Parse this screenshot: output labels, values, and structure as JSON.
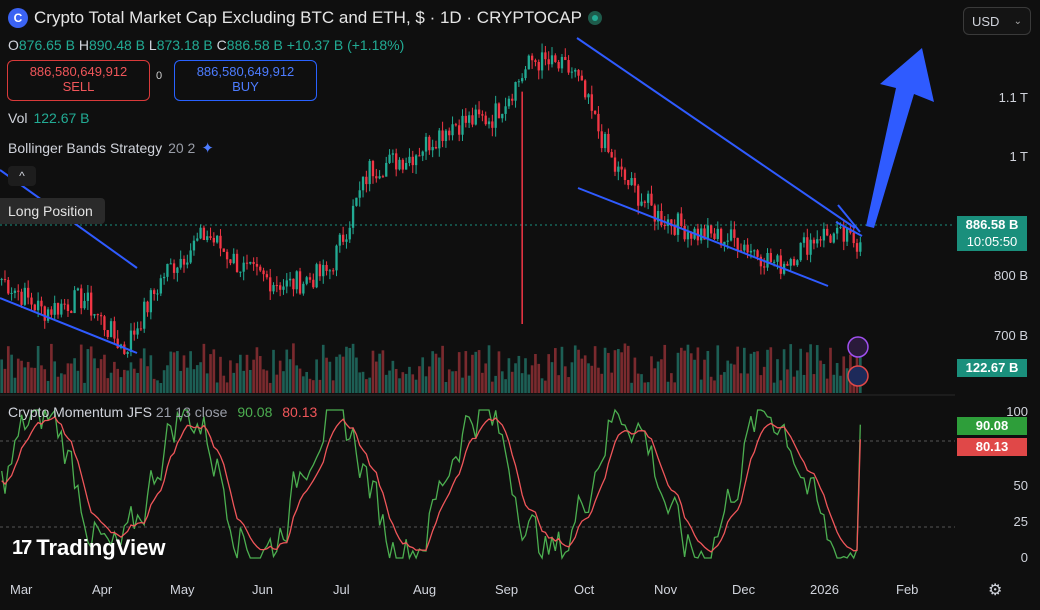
{
  "header": {
    "title": "Crypto Total Market Cap Excluding BTC and ETH, $ · 1D · CRYPTOCAP",
    "logo_glyph": "C"
  },
  "ohlc": {
    "o_label": "O",
    "o": "876.65 B",
    "h_label": "H",
    "h": "890.48 B",
    "l_label": "L",
    "l": "873.18 B",
    "c_label": "C",
    "c": "886.58 B",
    "change": "+10.37 B (+1.18%)"
  },
  "trade": {
    "sell_price": "886,580,649,912",
    "sell_label": "SELL",
    "spread": "0",
    "buy_price": "886,580,649,912",
    "buy_label": "BUY"
  },
  "volume": {
    "label": "Vol",
    "value": "122.67 B"
  },
  "indicator": {
    "name": "Bollinger Bands Strategy",
    "params": "20 2"
  },
  "position": {
    "label": "Long Position",
    "collapse_glyph": "^"
  },
  "currency": {
    "value": "USD"
  },
  "momentum": {
    "name": "Crypto Momentum JFS",
    "params": "21 13 close",
    "v1": "90.08",
    "v2": "80.13"
  },
  "price_tags": {
    "last": "886.58 B",
    "countdown": "10:05:50",
    "volume": "122.67 B"
  },
  "osc_tags": {
    "green": "90.08",
    "red": "80.13"
  },
  "brand": "TradingView",
  "colors": {
    "up": "#22ab94",
    "down": "#f23645",
    "trendline": "#2f5bff",
    "osc_green": "#4caf50",
    "osc_red": "#f0565a"
  },
  "chart_data": {
    "type": "candlestick",
    "title": "Crypto Total Market Cap Excluding BTC and ETH, $ · 1D · CRYPTOCAP",
    "x_ticks": [
      "Mar",
      "Apr",
      "May",
      "Jun",
      "Jul",
      "Aug",
      "Sep",
      "Oct",
      "Nov",
      "Dec",
      "2026",
      "Feb"
    ],
    "y_ticks": [
      {
        "value": 700,
        "label": "700 B"
      },
      {
        "value": 800,
        "label": "800 B"
      },
      {
        "value": 1000,
        "label": "1 T"
      },
      {
        "value": 1100,
        "label": "1.1 T"
      }
    ],
    "ylim": [
      650,
      1200
    ],
    "osc_ticks": [
      0,
      25,
      50,
      75,
      100
    ],
    "approx_close_path": [
      {
        "t": "Mar",
        "v": 830
      },
      {
        "t": "mid-Mar",
        "v": 780
      },
      {
        "t": "Apr",
        "v": 800
      },
      {
        "t": "mid-Apr",
        "v": 720
      },
      {
        "t": "May",
        "v": 840
      },
      {
        "t": "mid-May",
        "v": 900
      },
      {
        "t": "Jun",
        "v": 840
      },
      {
        "t": "mid-Jun",
        "v": 820
      },
      {
        "t": "Jul",
        "v": 840
      },
      {
        "t": "mid-Jul",
        "v": 1000
      },
      {
        "t": "Aug",
        "v": 1020
      },
      {
        "t": "mid-Aug",
        "v": 1070
      },
      {
        "t": "Sep",
        "v": 1080
      },
      {
        "t": "mid-Sep",
        "v": 1170
      },
      {
        "t": "Oct",
        "v": 1150
      },
      {
        "t": "mid-Oct",
        "v": 1000
      },
      {
        "t": "Nov",
        "v": 930
      },
      {
        "t": "mid-Nov",
        "v": 900
      },
      {
        "t": "Dec",
        "v": 890
      },
      {
        "t": "mid-Dec",
        "v": 850
      },
      {
        "t": "2026",
        "v": 900
      },
      {
        "t": "Jan (last)",
        "v": 886.58
      }
    ],
    "last_close": 886.58,
    "last_volume_b": 122.67,
    "momentum_last": {
      "series1": 90.08,
      "series2": 80.13
    }
  }
}
